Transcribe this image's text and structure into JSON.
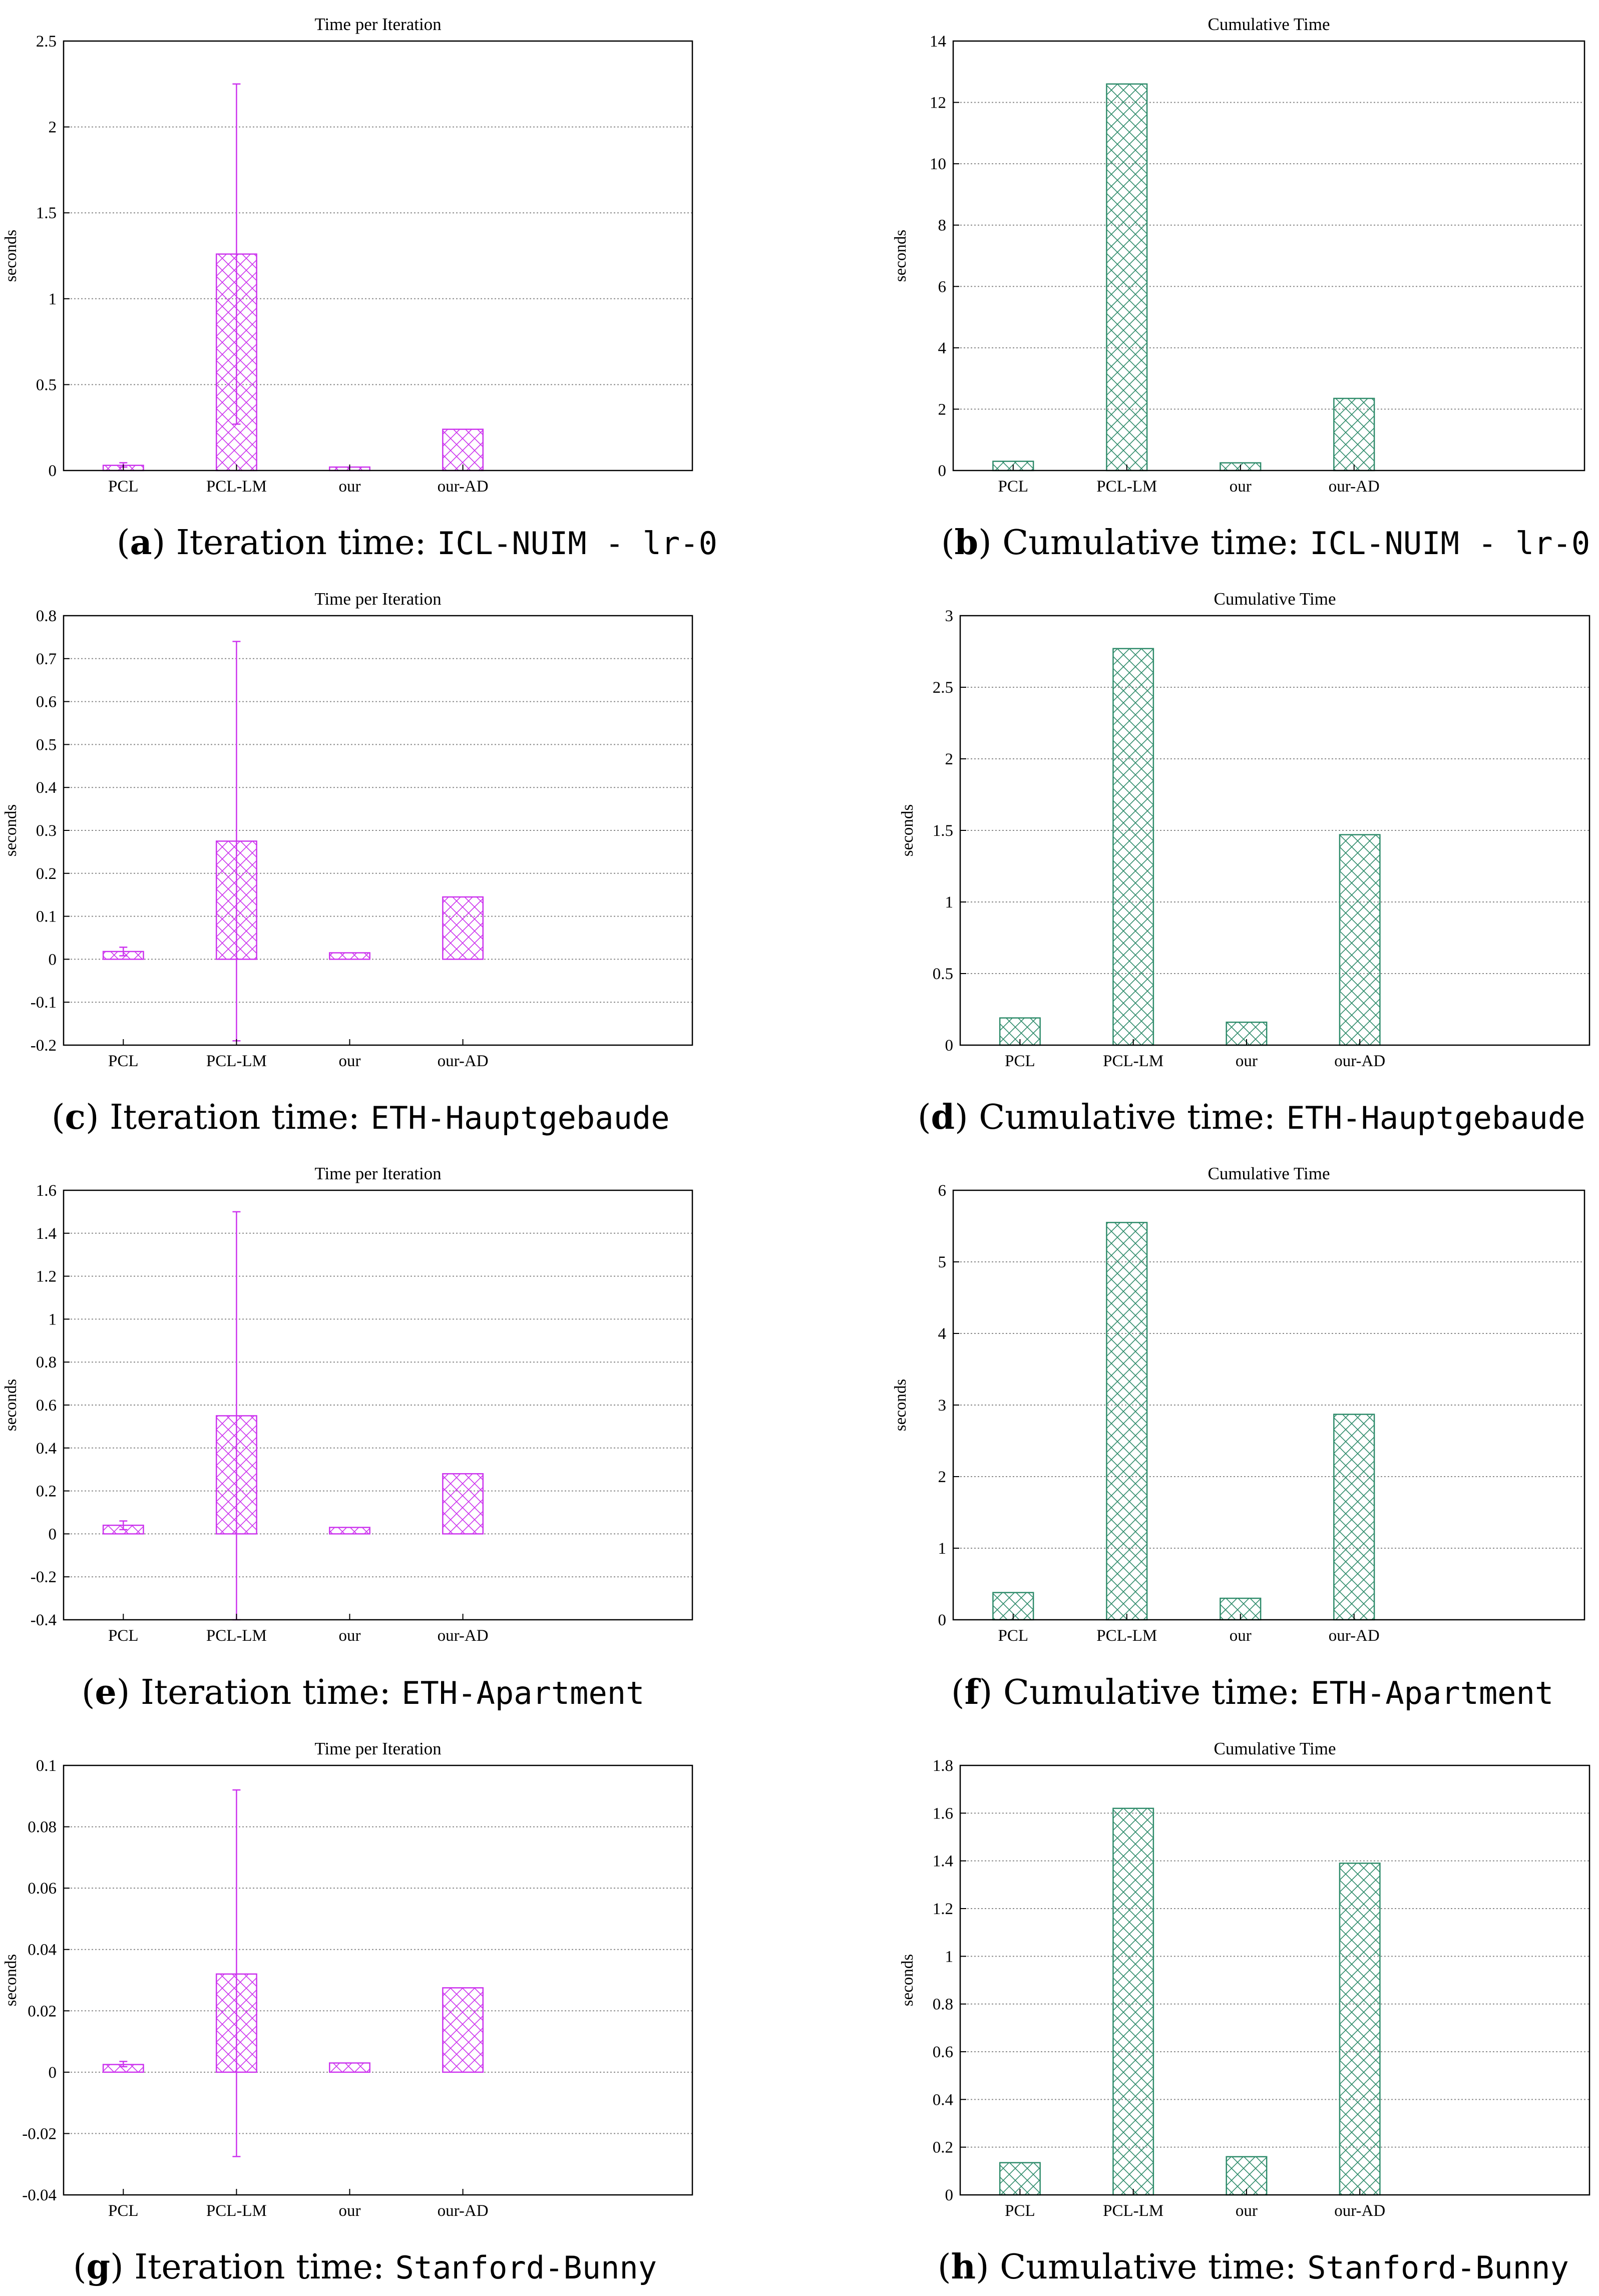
{
  "colors": {
    "iteration": "#cc33ee",
    "cumulative": "#2e8b6a",
    "grid": "#8a8a8a"
  },
  "captions": [
    {
      "letter": "a",
      "text": "Iteration time: ",
      "dataset": "ICL-NUIM - lr-0"
    },
    {
      "letter": "b",
      "text": "Cumulative time: ",
      "dataset": "ICL-NUIM - lr-0"
    },
    {
      "letter": "c",
      "text": "Iteration time: ",
      "dataset": "ETH-Hauptgebaude"
    },
    {
      "letter": "d",
      "text": "Cumulative time: ",
      "dataset": "ETH-Hauptgebaude"
    },
    {
      "letter": "e",
      "text": "Iteration time: ",
      "dataset": "ETH-Apartment"
    },
    {
      "letter": "f",
      "text": "Cumulative time: ",
      "dataset": "ETH-Apartment"
    },
    {
      "letter": "g",
      "text": "Iteration time: ",
      "dataset": "Stanford-Bunny"
    },
    {
      "letter": "h",
      "text": "Cumulative time: ",
      "dataset": "Stanford-Bunny"
    }
  ],
  "chart_data": [
    {
      "panel": "a",
      "type": "bar",
      "title": "Time per Iteration",
      "ylabel": "seconds",
      "categories": [
        "PCL",
        "PCL-LM",
        "our",
        "our-AD"
      ],
      "values": [
        0.03,
        1.26,
        0.02,
        0.24
      ],
      "error_low": [
        0.02,
        0.27,
        0.02,
        0.24
      ],
      "error_high": [
        0.045,
        2.25,
        0.02,
        0.24
      ],
      "ylim": [
        0,
        2.5
      ],
      "yticks": [
        "0",
        "0.5",
        "1",
        "1.5",
        "2",
        "2.5"
      ],
      "grid": true
    },
    {
      "panel": "b",
      "type": "bar",
      "title": "Cumulative Time",
      "ylabel": "seconds",
      "categories": [
        "PCL",
        "PCL-LM",
        "our",
        "our-AD"
      ],
      "values": [
        0.3,
        12.6,
        0.25,
        2.35
      ],
      "ylim": [
        0,
        14
      ],
      "yticks": [
        "0",
        "2",
        "4",
        "6",
        "8",
        "10",
        "12",
        "14"
      ],
      "grid": true
    },
    {
      "panel": "c",
      "type": "bar",
      "title": "Time per Iteration",
      "ylabel": "seconds",
      "categories": [
        "PCL",
        "PCL-LM",
        "our",
        "our-AD"
      ],
      "values": [
        0.018,
        0.275,
        0.015,
        0.145
      ],
      "error_low": [
        0.008,
        -0.19,
        0.015,
        0.145
      ],
      "error_high": [
        0.028,
        0.74,
        0.015,
        0.145
      ],
      "ylim": [
        -0.2,
        0.8
      ],
      "yticks": [
        "-0.2",
        "-0.1",
        "0",
        "0.1",
        "0.2",
        "0.3",
        "0.4",
        "0.5",
        "0.6",
        "0.7",
        "0.8"
      ],
      "grid": true
    },
    {
      "panel": "d",
      "type": "bar",
      "title": "Cumulative Time",
      "ylabel": "seconds",
      "categories": [
        "PCL",
        "PCL-LM",
        "our",
        "our-AD"
      ],
      "values": [
        0.19,
        2.77,
        0.16,
        1.47
      ],
      "ylim": [
        0,
        3
      ],
      "yticks": [
        "0",
        "0.5",
        "1",
        "1.5",
        "2",
        "2.5",
        "3"
      ],
      "grid": true
    },
    {
      "panel": "e",
      "type": "bar",
      "title": "Time per Iteration",
      "ylabel": "seconds",
      "categories": [
        "PCL",
        "PCL-LM",
        "our",
        "our-AD"
      ],
      "values": [
        0.04,
        0.55,
        0.03,
        0.28
      ],
      "error_low": [
        0.02,
        -0.4,
        0.03,
        0.28
      ],
      "error_high": [
        0.06,
        1.5,
        0.03,
        0.28
      ],
      "ylim": [
        -0.4,
        1.6
      ],
      "yticks": [
        "-0.4",
        "-0.2",
        "0",
        "0.2",
        "0.4",
        "0.6",
        "0.8",
        "1",
        "1.2",
        "1.4",
        "1.6"
      ],
      "grid": true
    },
    {
      "panel": "f",
      "type": "bar",
      "title": "Cumulative Time",
      "ylabel": "seconds",
      "categories": [
        "PCL",
        "PCL-LM",
        "our",
        "our-AD"
      ],
      "values": [
        0.38,
        5.55,
        0.3,
        2.87
      ],
      "ylim": [
        0,
        6
      ],
      "yticks": [
        "0",
        "1",
        "2",
        "3",
        "4",
        "5",
        "6"
      ],
      "grid": true
    },
    {
      "panel": "g",
      "type": "bar",
      "title": "Time per Iteration",
      "ylabel": "seconds",
      "categories": [
        "PCL",
        "PCL-LM",
        "our",
        "our-AD"
      ],
      "values": [
        0.0025,
        0.032,
        0.003,
        0.0275
      ],
      "error_low": [
        0.0018,
        -0.0275,
        0.003,
        0.0275
      ],
      "error_high": [
        0.0035,
        0.092,
        0.003,
        0.0275
      ],
      "ylim": [
        -0.04,
        0.1
      ],
      "yticks": [
        "-0.04",
        "-0.02",
        "0",
        "0.02",
        "0.04",
        "0.06",
        "0.08",
        "0.1"
      ],
      "grid": true
    },
    {
      "panel": "h",
      "type": "bar",
      "title": "Cumulative Time",
      "ylabel": "seconds",
      "categories": [
        "PCL",
        "PCL-LM",
        "our",
        "our-AD"
      ],
      "values": [
        0.135,
        1.62,
        0.16,
        1.39
      ],
      "ylim": [
        0,
        1.8
      ],
      "yticks": [
        "0",
        "0.2",
        "0.4",
        "0.6",
        "0.8",
        "1",
        "1.2",
        "1.4",
        "1.6",
        "1.8"
      ],
      "grid": true
    }
  ]
}
